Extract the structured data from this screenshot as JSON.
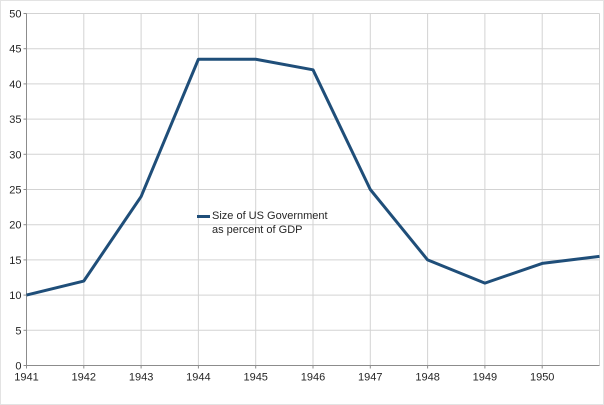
{
  "chart_data": {
    "type": "line",
    "x": [
      1941,
      1942,
      1943,
      1944,
      1945,
      1946,
      1947,
      1948,
      1949,
      1950,
      1951
    ],
    "series": [
      {
        "name": "Size of US Government as percent of GDP",
        "values": [
          10,
          12,
          24,
          43.5,
          43.5,
          42,
          25,
          15,
          11.7,
          14.5,
          15.5
        ],
        "color": "#1f4e79"
      }
    ],
    "x_tick_labels": [
      "1941",
      "1942",
      "1943",
      "1944",
      "1945",
      "1946",
      "1947",
      "1948",
      "1949",
      "1950"
    ],
    "y_ticks": [
      0,
      5,
      10,
      15,
      20,
      25,
      30,
      35,
      40,
      45,
      50
    ],
    "ylim": [
      0,
      50
    ],
    "xlabel": "",
    "ylabel": "",
    "title": "",
    "grid": true,
    "legend": {
      "line1": "Size of US Government",
      "line2": "as percent of GDP",
      "position": "center"
    }
  },
  "colors": {
    "line": "#1f4e79",
    "grid": "#d3d3d3",
    "axis": "#8c8c8c",
    "text": "#262626",
    "background": "#ffffff"
  }
}
